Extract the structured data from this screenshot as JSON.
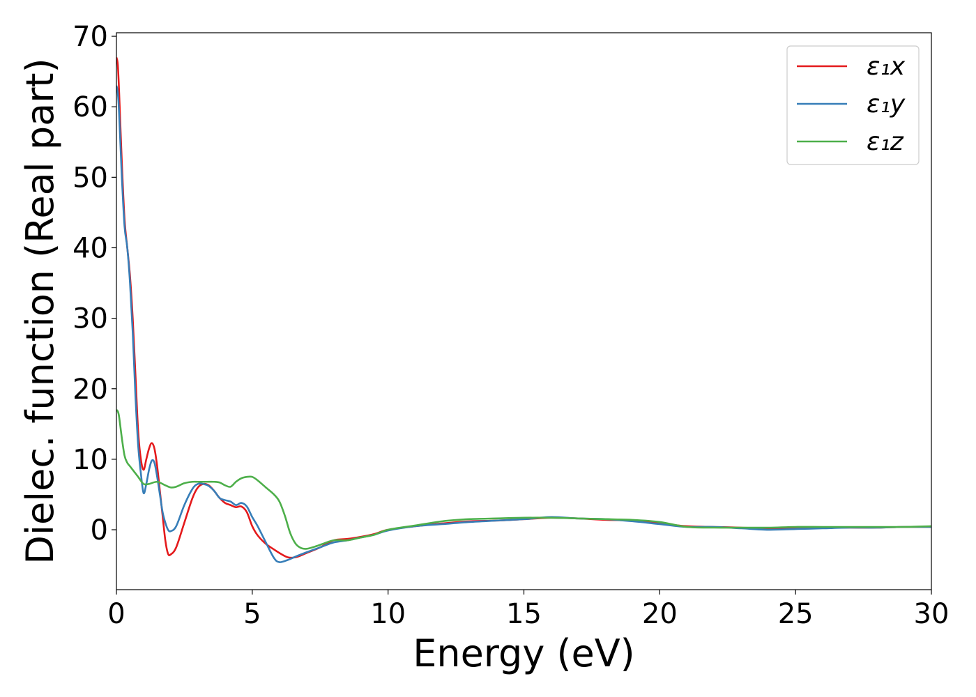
{
  "chart_data": {
    "type": "line",
    "title": "",
    "xlabel": "Energy (eV)",
    "ylabel": "Dielec. function (Real part)",
    "xlim": [
      0,
      30
    ],
    "ylim": [
      -8.5,
      70.5
    ],
    "xticks": [
      0,
      5,
      10,
      15,
      20,
      25,
      30
    ],
    "yticks": [
      0,
      10,
      20,
      30,
      40,
      50,
      60,
      70
    ],
    "grid": false,
    "legend_position": "top-right",
    "series": [
      {
        "name": "ε₁x",
        "color": "#e41a1c",
        "x": [
          0.0,
          0.05,
          0.1,
          0.2,
          0.3,
          0.4,
          0.5,
          0.6,
          0.7,
          0.8,
          0.9,
          1.0,
          1.1,
          1.2,
          1.3,
          1.4,
          1.5,
          1.6,
          1.7,
          1.8,
          1.9,
          2.0,
          2.2,
          2.5,
          2.8,
          3.0,
          3.2,
          3.4,
          3.6,
          3.8,
          4.0,
          4.2,
          4.4,
          4.6,
          4.8,
          5.0,
          5.2,
          5.5,
          5.8,
          6.0,
          6.3,
          6.6,
          7.0,
          7.5,
          8.0,
          8.5,
          9.0,
          9.5,
          10.0,
          11.0,
          12.0,
          13.0,
          14.0,
          15.0,
          16.0,
          17.0,
          18.0,
          19.0,
          20.0,
          21.0,
          22.0,
          23.0,
          24.0,
          25.0,
          26.0,
          27.0,
          28.0,
          29.0,
          30.0
        ],
        "y": [
          67,
          66,
          62,
          52,
          44,
          40,
          36,
          30,
          22,
          14,
          10,
          8.5,
          10,
          11.5,
          12.3,
          11.5,
          9,
          5.5,
          2,
          -1.5,
          -3.4,
          -3.5,
          -2.5,
          1,
          4.5,
          6,
          6.5,
          6.3,
          5.5,
          4.5,
          3.8,
          3.5,
          3.2,
          3.3,
          2.5,
          0.5,
          -0.8,
          -2,
          -2.8,
          -3.3,
          -3.9,
          -3.9,
          -3.3,
          -2.5,
          -1.5,
          -1.3,
          -1.0,
          -0.6,
          0,
          0.5,
          0.9,
          1.2,
          1.3,
          1.5,
          1.7,
          1.6,
          1.4,
          1.3,
          0.9,
          0.5,
          0.4,
          0.3,
          0.2,
          0.2,
          0.3,
          0.3,
          0.3,
          0.4,
          0.4
        ]
      },
      {
        "name": "ε₁y",
        "color": "#377eb8",
        "x": [
          0.0,
          0.05,
          0.1,
          0.2,
          0.3,
          0.4,
          0.5,
          0.6,
          0.7,
          0.8,
          0.9,
          1.0,
          1.1,
          1.2,
          1.3,
          1.4,
          1.5,
          1.6,
          1.7,
          1.8,
          1.9,
          2.0,
          2.2,
          2.5,
          2.8,
          3.0,
          3.2,
          3.4,
          3.6,
          3.8,
          4.0,
          4.2,
          4.4,
          4.6,
          4.8,
          5.0,
          5.2,
          5.5,
          5.8,
          6.0,
          6.3,
          6.6,
          7.0,
          7.5,
          8.0,
          8.5,
          9.0,
          9.5,
          10.0,
          11.0,
          12.0,
          13.0,
          14.0,
          15.0,
          16.0,
          17.0,
          18.0,
          19.0,
          20.0,
          21.0,
          22.0,
          23.0,
          24.0,
          25.0,
          26.0,
          27.0,
          28.0,
          29.0,
          30.0
        ],
        "y": [
          63,
          62,
          59,
          50,
          43,
          40,
          35,
          28,
          19,
          12,
          8,
          5.2,
          6.5,
          8.5,
          9.8,
          9.5,
          7.5,
          5,
          2.5,
          1,
          0,
          -0.2,
          0.5,
          3.5,
          5.8,
          6.5,
          6.5,
          6.2,
          5.5,
          4.5,
          4.2,
          4,
          3.5,
          3.8,
          3.3,
          1.8,
          0.5,
          -1.8,
          -4,
          -4.6,
          -4.3,
          -3.8,
          -3.2,
          -2.5,
          -1.8,
          -1.5,
          -1.1,
          -0.7,
          -0.1,
          0.5,
          0.8,
          1.1,
          1.3,
          1.5,
          1.8,
          1.6,
          1.5,
          1.2,
          0.8,
          0.4,
          0.4,
          0.2,
          0.0,
          0.1,
          0.2,
          0.3,
          0.3,
          0.4,
          0.4
        ]
      },
      {
        "name": "ε₁z",
        "color": "#4daf4a",
        "x": [
          0.0,
          0.05,
          0.1,
          0.2,
          0.3,
          0.4,
          0.5,
          0.6,
          0.8,
          1.0,
          1.2,
          1.5,
          1.8,
          2.0,
          2.2,
          2.5,
          2.8,
          3.0,
          3.3,
          3.6,
          3.8,
          4.0,
          4.2,
          4.4,
          4.6,
          4.8,
          5.0,
          5.2,
          5.5,
          5.8,
          6.0,
          6.2,
          6.4,
          6.6,
          6.8,
          7.0,
          7.3,
          7.6,
          8.0,
          8.5,
          9.0,
          9.5,
          10.0,
          11.0,
          12.0,
          13.0,
          14.0,
          15.0,
          16.0,
          17.0,
          18.0,
          19.0,
          20.0,
          21.0,
          22.0,
          23.0,
          24.0,
          25.0,
          26.0,
          27.0,
          28.0,
          29.0,
          30.0
        ],
        "y": [
          17,
          16.8,
          16,
          13,
          10.5,
          9.5,
          9,
          8.5,
          7.5,
          6.5,
          6.5,
          6.8,
          6.3,
          6.0,
          6.1,
          6.6,
          6.8,
          6.8,
          6.8,
          6.8,
          6.7,
          6.3,
          6.1,
          6.8,
          7.3,
          7.5,
          7.5,
          7.0,
          6.0,
          5.0,
          4.0,
          2.0,
          -0.5,
          -2.0,
          -2.6,
          -2.7,
          -2.4,
          -2.0,
          -1.5,
          -1.5,
          -1.1,
          -0.7,
          0.0,
          0.6,
          1.2,
          1.5,
          1.6,
          1.7,
          1.7,
          1.6,
          1.5,
          1.4,
          1.1,
          0.4,
          0.3,
          0.3,
          0.3,
          0.4,
          0.4,
          0.4,
          0.4,
          0.4,
          0.5
        ]
      }
    ]
  }
}
